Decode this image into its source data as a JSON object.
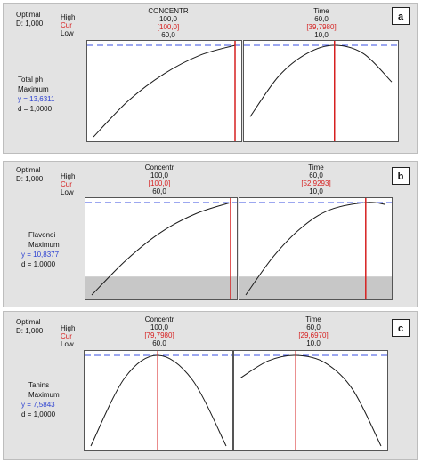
{
  "labels": {
    "optimal": "Optimal",
    "high": "High",
    "cur": "Cur",
    "low": "Low"
  },
  "panels": [
    {
      "badge": "a",
      "d_overall": "D: 1,000",
      "response_name": "Total ph",
      "goal": "Maximum",
      "y_text": "y = 13,6311",
      "d_text": "d = 1,0000",
      "factors": [
        {
          "name": "CONCENTR",
          "high": "100,0",
          "cur": "[100,0]",
          "low": "60,0"
        },
        {
          "name": "Time",
          "high": "60,0",
          "cur": "[39,7980]",
          "low": "10,0"
        }
      ]
    },
    {
      "badge": "b",
      "d_overall": "D: 1,000",
      "response_name": "Flavonoi",
      "goal": "Maximum",
      "y_text": "y = 10,8377",
      "d_text": "d = 1,0000",
      "factors": [
        {
          "name": "Concentr",
          "high": "100,0",
          "cur": "[100,0]",
          "low": "60,0"
        },
        {
          "name": "Time",
          "high": "60,0",
          "cur": "[52,9293]",
          "low": "10,0"
        }
      ]
    },
    {
      "badge": "c",
      "d_overall": "D: 1,000",
      "response_name": "Tanins",
      "goal": "Maximum",
      "y_text": "y = 7,5843",
      "d_text": "d = 1,0000",
      "factors": [
        {
          "name": "Concentr",
          "high": "100,0",
          "cur": "[79,7980]",
          "low": "60,0"
        },
        {
          "name": "Time",
          "high": "60,0",
          "cur": "[29,6970]",
          "low": "10,0"
        }
      ]
    }
  ],
  "colors": {
    "cur_line": "#d62020",
    "target_line": "#3a4fe0",
    "curve": "#1a1a1a",
    "shade": "#c7c7c7"
  },
  "chart_data": [
    {
      "type": "line",
      "response": "Total ph",
      "subplots": [
        {
          "factor": "CONCENTR",
          "xlim": [
            60,
            100
          ],
          "current": 100,
          "x": [
            60,
            70,
            80,
            90,
            100
          ],
          "y": [
            0.0,
            0.4,
            0.69,
            0.89,
            1.0
          ]
        },
        {
          "factor": "Time",
          "xlim": [
            10,
            60
          ],
          "current": 39.798,
          "x": [
            10,
            20,
            30,
            39.798,
            50,
            60
          ],
          "y": [
            0.22,
            0.66,
            0.91,
            1.0,
            0.91,
            0.6
          ]
        }
      ],
      "target_level": 1.0
    },
    {
      "type": "line",
      "response": "Flavonoi",
      "subplots": [
        {
          "factor": "Concentr",
          "xlim": [
            60,
            100
          ],
          "current": 100,
          "x": [
            60,
            70,
            80,
            90,
            100
          ],
          "y": [
            0.0,
            0.38,
            0.68,
            0.88,
            1.0
          ]
        },
        {
          "factor": "Time",
          "xlim": [
            10,
            60
          ],
          "current": 52.9293,
          "x": [
            10,
            20,
            30,
            40,
            52.9293,
            60
          ],
          "y": [
            0.0,
            0.42,
            0.73,
            0.92,
            1.0,
            0.98
          ]
        }
      ],
      "target_level": 1.0,
      "shaded_below": 0.2
    },
    {
      "type": "line",
      "response": "Tanins",
      "subplots": [
        {
          "factor": "Concentr",
          "xlim": [
            60,
            100
          ],
          "current": 79.798,
          "x": [
            60,
            70,
            79.798,
            90,
            100
          ],
          "y": [
            0.0,
            0.75,
            1.0,
            0.73,
            0.0
          ]
        },
        {
          "factor": "Time",
          "xlim": [
            10,
            60
          ],
          "current": 29.697,
          "x": [
            10,
            20,
            29.697,
            40,
            50,
            60
          ],
          "y": [
            0.75,
            0.94,
            1.0,
            0.92,
            0.62,
            0.0
          ]
        }
      ],
      "target_level": 1.0
    }
  ]
}
